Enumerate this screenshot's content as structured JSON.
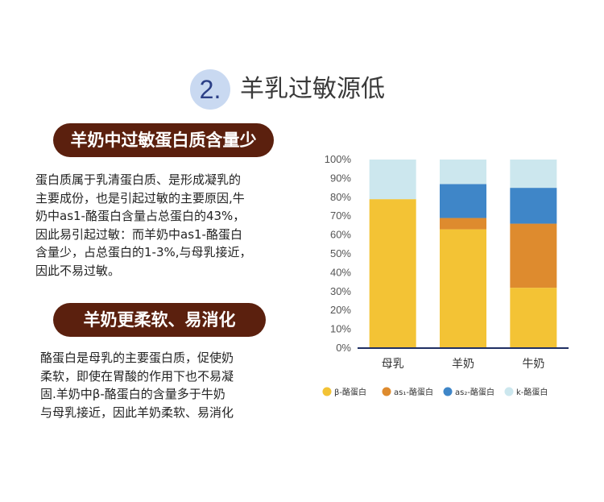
{
  "header": {
    "number": "2.",
    "title": "羊乳过敏源低"
  },
  "section1": {
    "heading": "羊奶中过敏蛋白质含量少",
    "lines": [
      "蛋白质属于乳清蛋白质、是形成凝乳的",
      "主要成份，也是引起过敏的主要原因,牛",
      "奶中as1-酪蛋白含量占总蛋白的43%，",
      "因此易引起过敏：而羊奶中as1-酪蛋白",
      "含量少，占总蛋白的1-3%,与母乳接近，",
      "因此不易过敏。"
    ]
  },
  "section2": {
    "heading": "羊奶更柔软、易消化",
    "lines": [
      "酪蛋白是母乳的主要蛋白质，促使奶",
      "柔软，即使在胃酸的作用下也不易凝",
      "固.羊奶中β-酪蛋白的含量多于牛奶",
      "与母乳接近，因此羊奶柔软、易消化"
    ]
  },
  "chart_data": {
    "type": "bar",
    "stacked": true,
    "categories": [
      "母乳",
      "羊奶",
      "牛奶"
    ],
    "yticks": [
      "0%",
      "10%",
      "20%",
      "30%",
      "40%",
      "50%",
      "60%",
      "70%",
      "80%",
      "90%",
      "100%"
    ],
    "ylim": [
      0,
      100
    ],
    "series": [
      {
        "name": "β-酪蛋白",
        "color": "#f3c335",
        "values": [
          79,
          63,
          32
        ]
      },
      {
        "name": "as₁-酪蛋白",
        "color": "#de8b2e",
        "values": [
          0,
          6,
          34
        ]
      },
      {
        "name": "as₂-酪蛋白",
        "color": "#3f86c8",
        "values": [
          0,
          18,
          19
        ]
      },
      {
        "name": "k-酪蛋白",
        "color": "#cce7ee",
        "values": [
          21,
          13,
          15
        ]
      }
    ],
    "legend_position": "bottom"
  }
}
